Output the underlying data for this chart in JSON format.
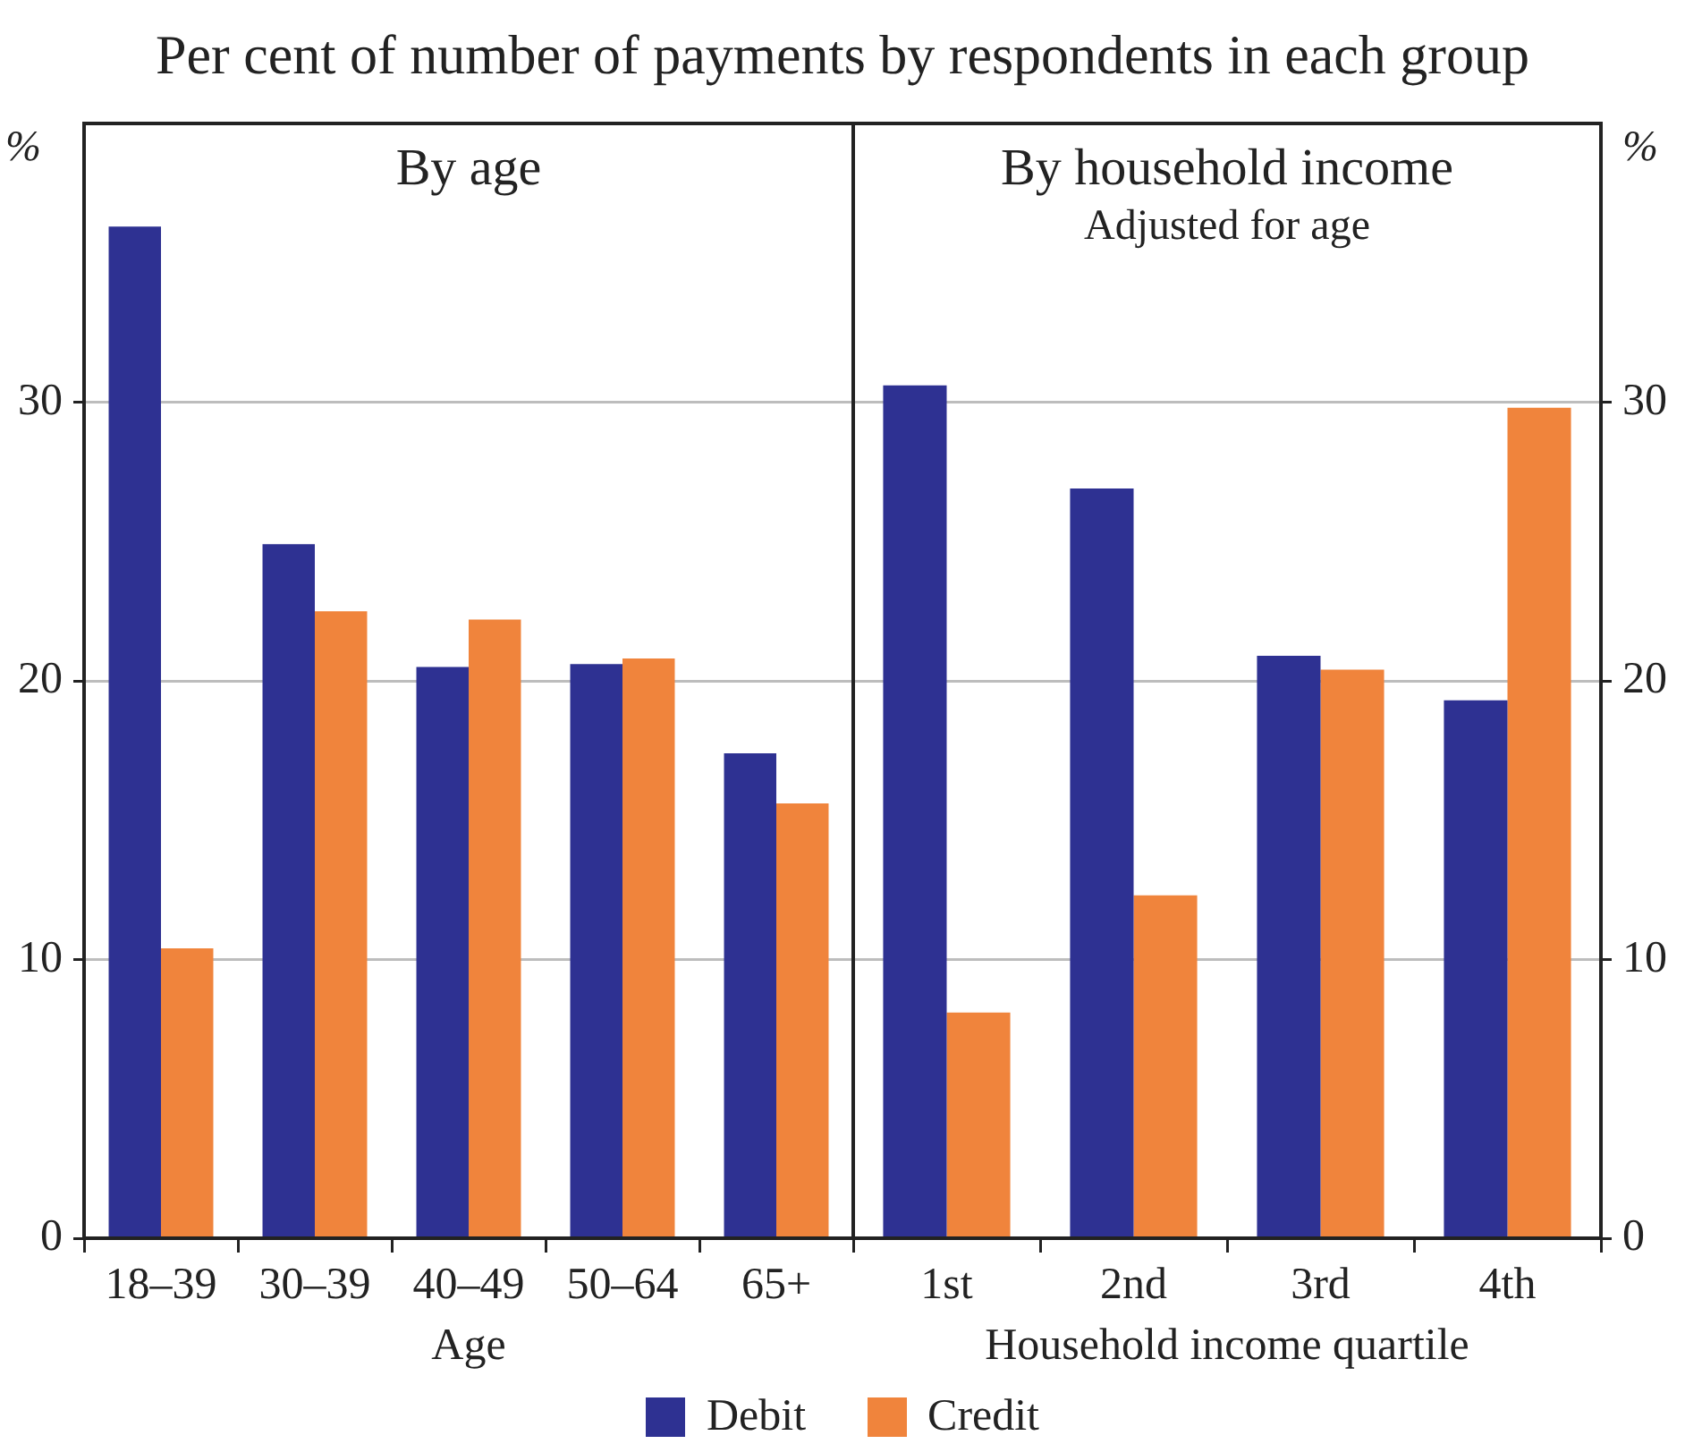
{
  "chart_data": [
    {
      "type": "bar",
      "title": "By age",
      "xlabel": "Age",
      "ylabel": "%",
      "annotations": [
        "Per cent of number of payments by respondents in each group"
      ],
      "categories": [
        "18–39",
        "30–39",
        "40–49",
        "50–64",
        "65+"
      ],
      "series": [
        {
          "name": "Debit",
          "color": "#2e3192",
          "values": [
            36.3,
            24.9,
            20.5,
            20.6,
            17.4
          ]
        },
        {
          "name": "Credit",
          "color": "#f0843c",
          "values": [
            10.4,
            22.5,
            22.2,
            20.8,
            15.6
          ]
        }
      ],
      "ylim": [
        0,
        40
      ],
      "yticks": [
        0,
        10,
        20,
        30
      ],
      "grid": "y",
      "legend": "bottom"
    },
    {
      "type": "bar",
      "title": "By household income",
      "subtitle": "Adjusted for age",
      "xlabel": "Household income quartile",
      "y2label": "%",
      "categories": [
        "1st",
        "2nd",
        "3rd",
        "4th"
      ],
      "series": [
        {
          "name": "Debit",
          "color": "#2e3192",
          "axis": "y2",
          "values": [
            30.6,
            26.9,
            20.9,
            19.3
          ]
        },
        {
          "name": "Credit",
          "color": "#f0843c",
          "axis": "y2",
          "values": [
            8.1,
            12.3,
            20.4,
            29.8
          ]
        }
      ],
      "y2lim": [
        0,
        40
      ],
      "y2ticks": [
        0,
        10,
        20,
        30
      ],
      "grid": "y",
      "legend": "bottom"
    }
  ]
}
